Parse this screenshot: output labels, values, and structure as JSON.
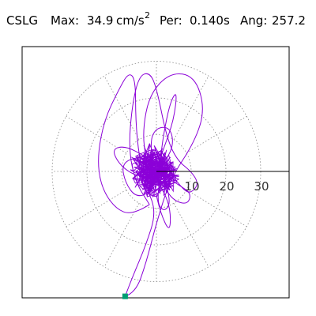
{
  "header": {
    "station": "CSLG",
    "max_label": "Max:",
    "max_value": "34.9",
    "max_unit": "cm/s",
    "max_unit_exp": "2",
    "per_label": "Per:",
    "per_value": "0.140",
    "per_unit": "s",
    "ang_label": "Ang:",
    "ang_value": "257.2"
  },
  "chart_data": {
    "type": "polar-orbit",
    "r_ticks": [
      10,
      20,
      30
    ],
    "tick_labels": [
      "10",
      "20",
      "30"
    ],
    "rings": [
      10,
      20,
      30
    ],
    "spokes_deg": [
      0,
      30,
      60,
      90,
      120,
      150,
      180,
      210,
      240,
      270,
      300,
      330
    ],
    "grid": true,
    "axis": "positive x axis",
    "max_amplitude": 34.9,
    "peak_angle_deg": 257.2,
    "peak_marker": {
      "x": -9,
      "y": -34
    },
    "colors": {
      "trace": "#8b00d8",
      "marker": "#009e73",
      "grid": "#888888",
      "frame": "#000000"
    }
  }
}
